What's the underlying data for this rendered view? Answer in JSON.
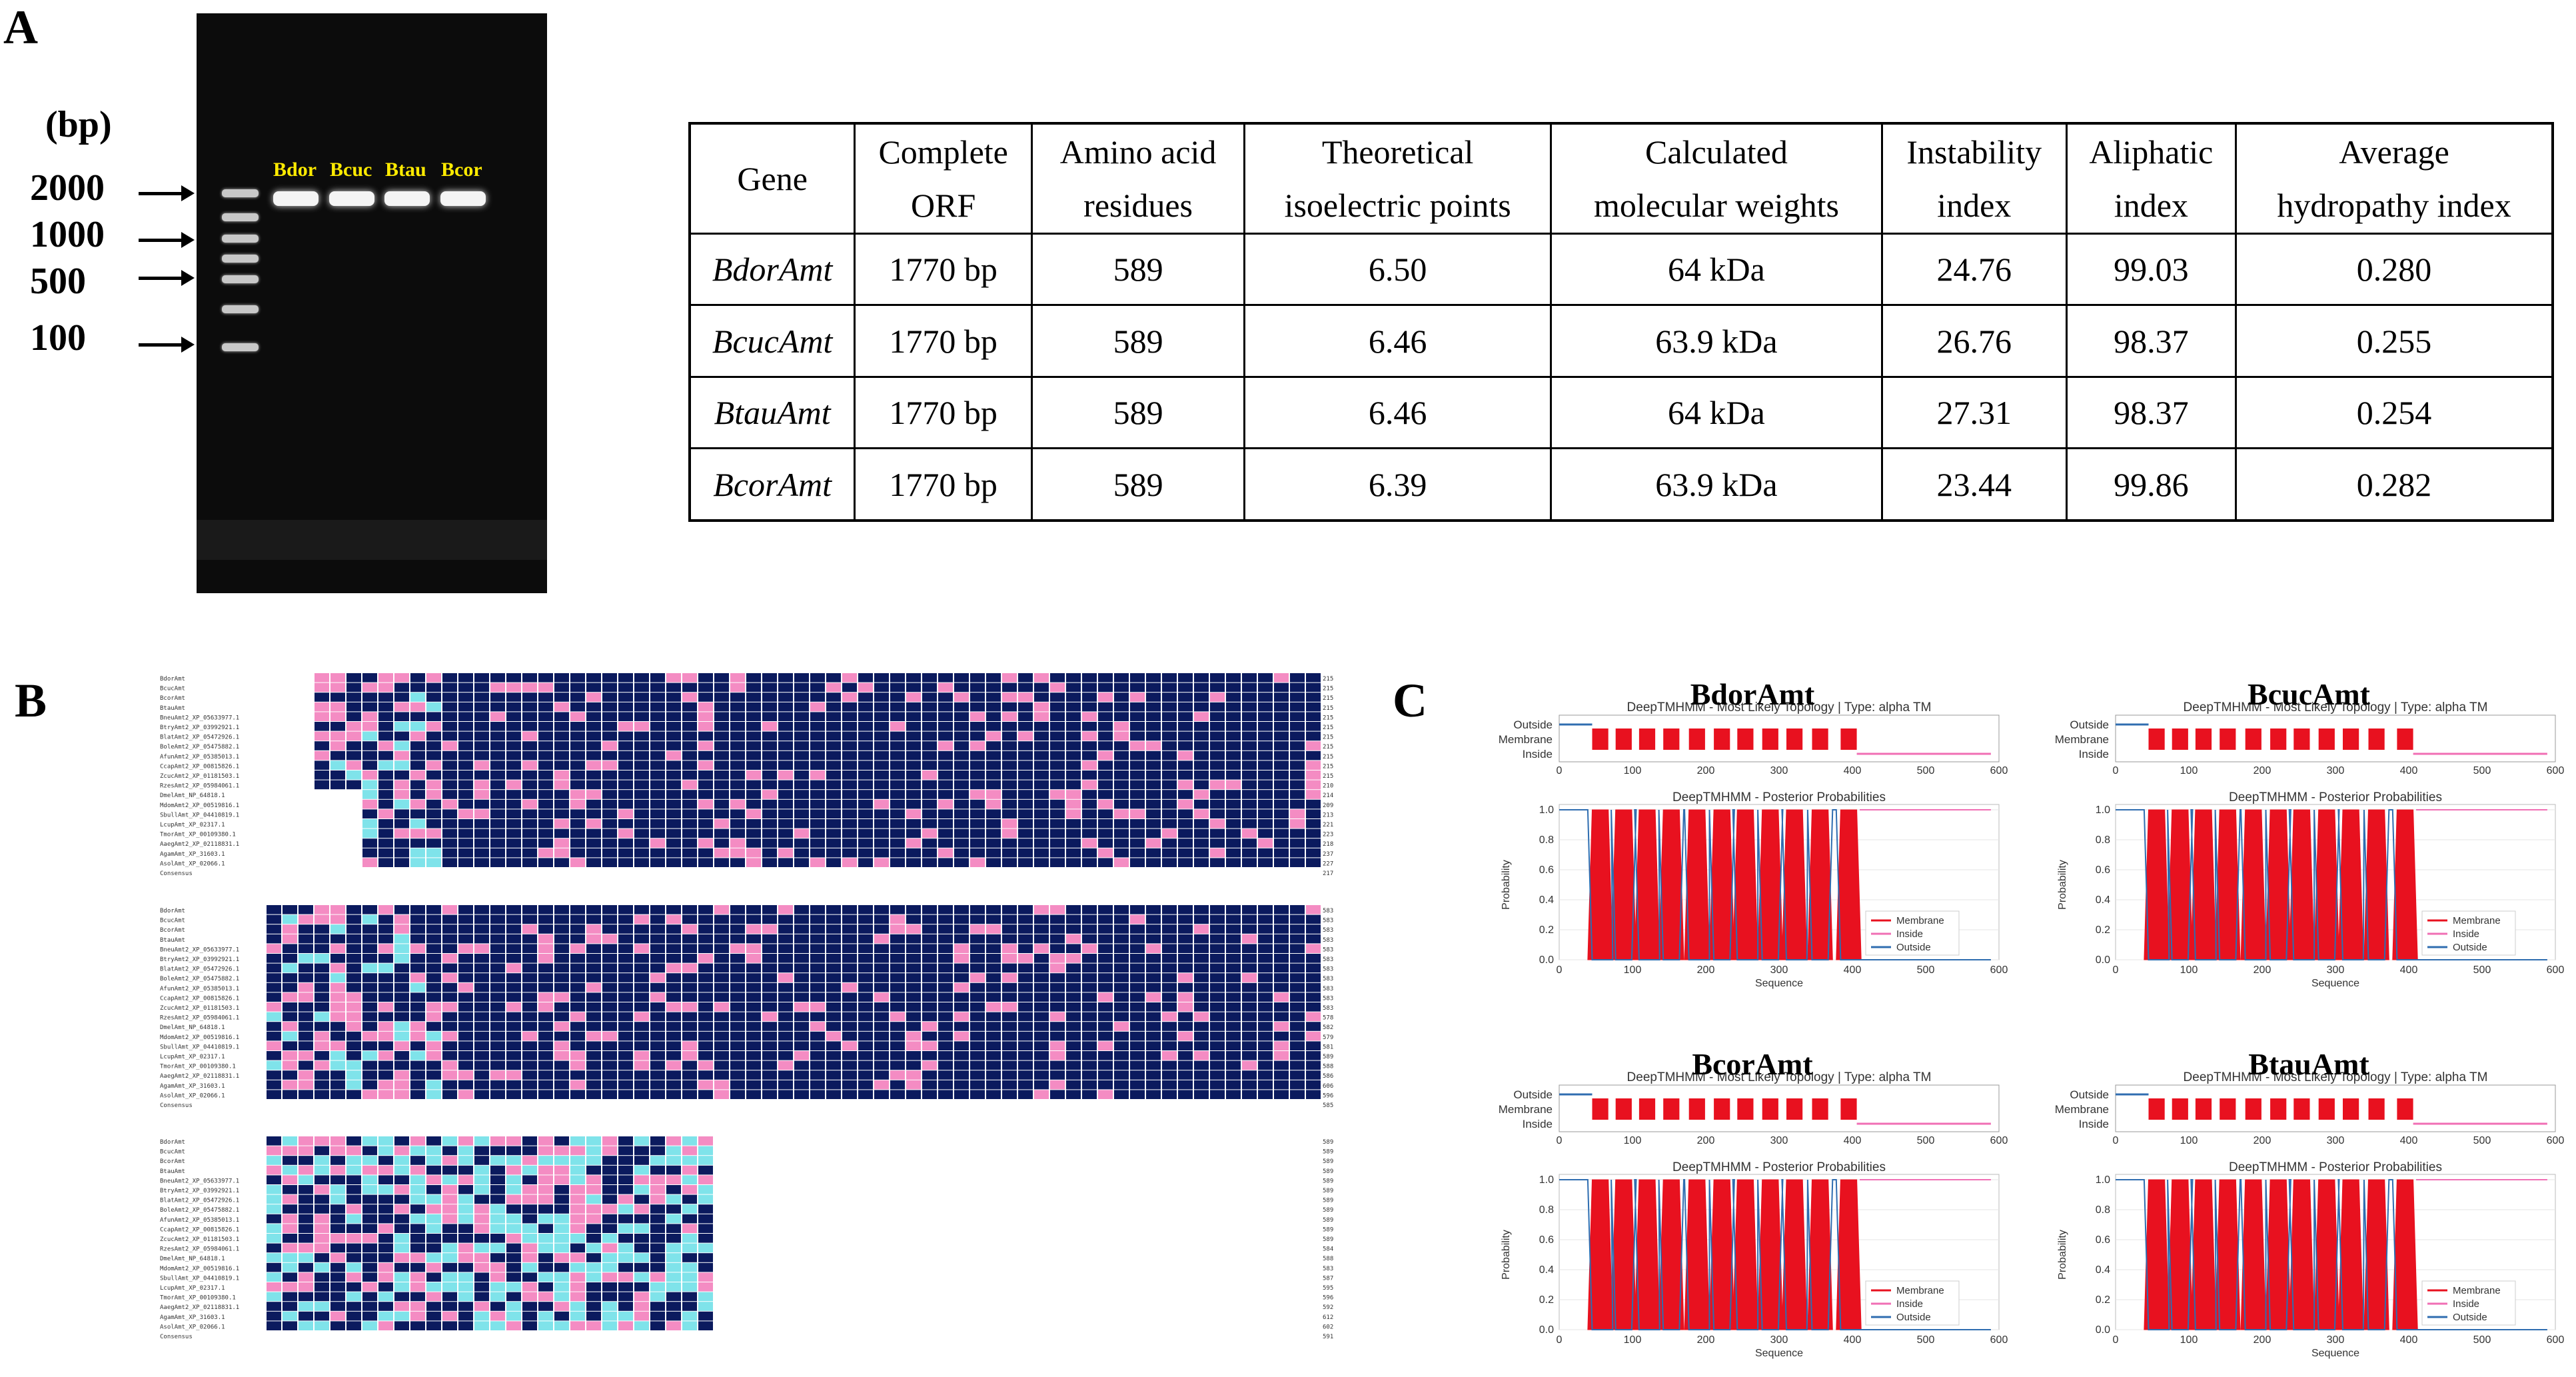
{
  "panels": {
    "a": "A",
    "b": "B",
    "c": "C"
  },
  "gel": {
    "bp_unit": "(bp)",
    "ladder_labels": [
      "2000",
      "1000",
      "500",
      "100"
    ],
    "lanes": [
      "Bdor",
      "Bcuc",
      "Btau",
      "Bcor"
    ]
  },
  "table": {
    "headers": [
      [
        "Gene"
      ],
      [
        "Complete",
        "ORF"
      ],
      [
        "Amino acid",
        "residues"
      ],
      [
        "Theoretical",
        "isoelectric points"
      ],
      [
        "Calculated",
        "molecular weights"
      ],
      [
        "Instability",
        "index"
      ],
      [
        "Aliphatic",
        "index"
      ],
      [
        "Average",
        "hydropathy index"
      ]
    ],
    "rows": [
      [
        "BdorAmt",
        "1770 bp",
        "589",
        "6.50",
        "64 kDa",
        "24.76",
        "99.03",
        "0.280"
      ],
      [
        "BcucAmt",
        "1770 bp",
        "589",
        "6.46",
        "63.9 kDa",
        "26.76",
        "98.37",
        "0.255"
      ],
      [
        "BtauAmt",
        "1770 bp",
        "589",
        "6.46",
        "64 kDa",
        "27.31",
        "98.37",
        "0.254"
      ],
      [
        "BcorAmt",
        "1770 bp",
        "589",
        "6.39",
        "63.9 kDa",
        "23.44",
        "99.86",
        "0.282"
      ]
    ]
  },
  "alignment": {
    "sequence_names": [
      "BdorAmt",
      "BcucAmt",
      "BcorAmt",
      "BtauAmt",
      "BneuAmt2_XP_05633977.1",
      "BtryAmt2_XP_03992921.1",
      "BlatAmt2_XP_05472926.1",
      "BoleAmt2_XP_05475882.1",
      "AfunAmt2_XP_05385013.1",
      "CcapAmt2_XP_00815826.1",
      "ZcucAmt2_XP_01181503.1",
      "RzesAmt2_XP_05984061.1",
      "DmelAmt_NP_64818.1",
      "MdomAmt2_XP_00519816.1",
      "SbullAmt_XP_04410819.1",
      "LcupAmt_XP_02317.1",
      "TmorAmt_XP_00109380.1",
      "AaegAmt2_XP_02118831.1",
      "AgamAmt_XP_31603.1",
      "AsolAmt_XP_02066.1",
      "Consensus"
    ],
    "block_end_positions": [
      [
        "215",
        "215",
        "215",
        "215",
        "215",
        "215",
        "215",
        "215",
        "215",
        "215",
        "215",
        "210",
        "214",
        "209",
        "213",
        "221",
        "223",
        "218",
        "237",
        "227",
        "217"
      ],
      [
        "583",
        "583",
        "583",
        "583",
        "583",
        "583",
        "583",
        "583",
        "583",
        "583",
        "583",
        "578",
        "582",
        "579",
        "581",
        "589",
        "588",
        "586",
        "606",
        "596",
        "585"
      ],
      [
        "589",
        "589",
        "589",
        "589",
        "589",
        "589",
        "589",
        "589",
        "589",
        "589",
        "589",
        "584",
        "588",
        "583",
        "587",
        "595",
        "596",
        "592",
        "612",
        "602",
        "591"
      ]
    ]
  },
  "topology": {
    "legend": [
      "Membrane",
      "Inside",
      "Outside"
    ],
    "colors": {
      "membrane": "#e8111f",
      "inside": "#f06fb4",
      "outside": "#2f6db0"
    },
    "plots": [
      {
        "name": "BdorAmt",
        "topology_title": "DeepTMHMM - Most Likely Topology | Type: alpha TM",
        "posterior_title": "DeepTMHMM - Posterior Probabilities",
        "xticks": [
          "0",
          "100",
          "200",
          "300",
          "400",
          "500",
          "600"
        ],
        "yticks": [
          "0.0",
          "0.2",
          "0.4",
          "0.6",
          "0.8",
          "1.0"
        ],
        "track_labels": [
          "Outside",
          "Membrane",
          "Inside"
        ],
        "ylabel": "Probability",
        "xlabel": "Sequence",
        "xmax": 600
      },
      {
        "name": "BcucAmt",
        "topology_title": "DeepTMHMM - Most Likely Topology | Type: alpha TM",
        "posterior_title": "DeepTMHMM - Posterior Probabilities",
        "xticks": [
          "0",
          "100",
          "200",
          "300",
          "400",
          "500",
          "600"
        ],
        "yticks": [
          "0.0",
          "0.2",
          "0.4",
          "0.6",
          "0.8",
          "1.0"
        ],
        "track_labels": [
          "Outside",
          "Membrane",
          "Inside"
        ],
        "ylabel": "Probability",
        "xlabel": "Sequence",
        "xmax": 600
      },
      {
        "name": "BcorAmt",
        "topology_title": "DeepTMHMM - Most Likely Topology | Type: alpha TM",
        "posterior_title": "DeepTMHMM - Posterior Probabilities",
        "xticks": [
          "0",
          "100",
          "200",
          "300",
          "400",
          "500",
          "600"
        ],
        "yticks": [
          "0.0",
          "0.2",
          "0.4",
          "0.6",
          "0.8",
          "1.0"
        ],
        "track_labels": [
          "Outside",
          "Membrane",
          "Inside"
        ],
        "ylabel": "Probability",
        "xlabel": "Sequence",
        "xmax": 600
      },
      {
        "name": "BtauAmt",
        "topology_title": "DeepTMHMM - Most Likely Topology | Type: alpha TM",
        "posterior_title": "DeepTMHMM - Posterior Probabilities",
        "xticks": [
          "0",
          "100",
          "200",
          "300",
          "400",
          "500",
          "600"
        ],
        "yticks": [
          "0.0",
          "0.2",
          "0.4",
          "0.6",
          "0.8",
          "1.0"
        ],
        "track_labels": [
          "Outside",
          "Membrane",
          "Inside"
        ],
        "ylabel": "Probability",
        "xlabel": "Sequence",
        "xmax": 600
      }
    ]
  }
}
